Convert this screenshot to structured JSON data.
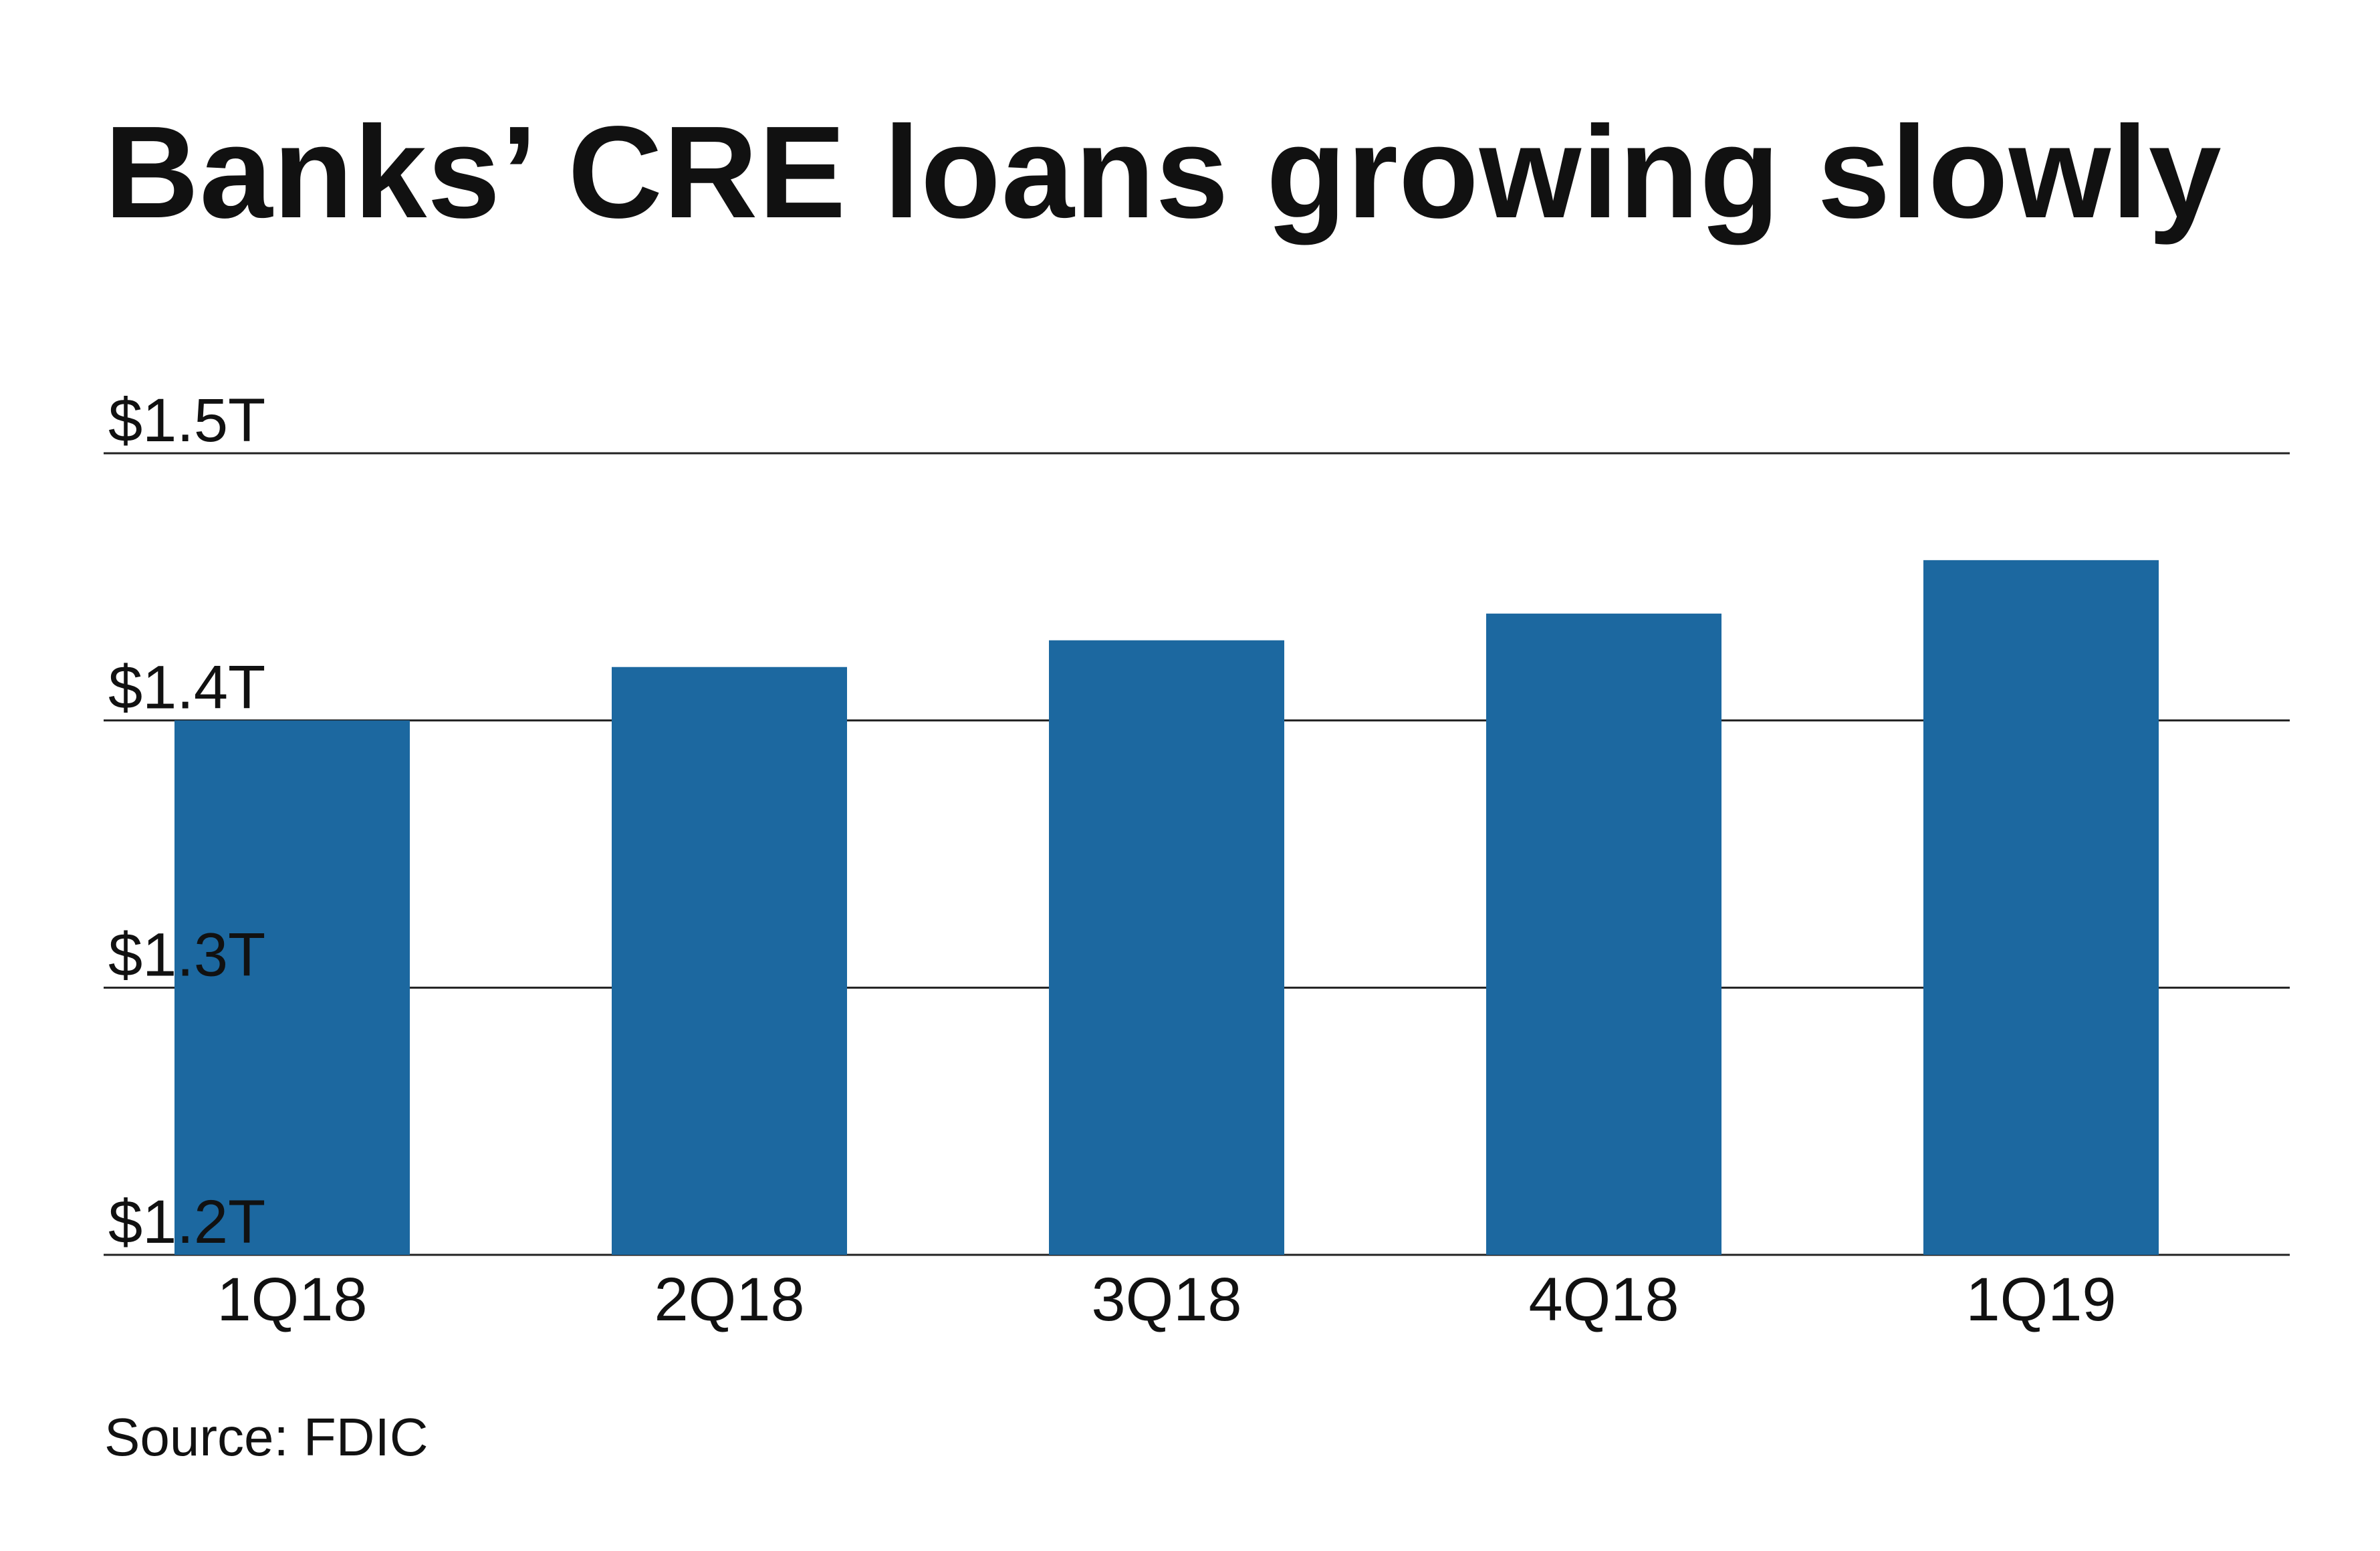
{
  "chart_data": {
    "type": "bar",
    "title": "Banks’ CRE loans growing slowly",
    "categories": [
      "1Q18",
      "2Q18",
      "3Q18",
      "4Q18",
      "1Q19"
    ],
    "values": [
      1.4,
      1.42,
      1.43,
      1.44,
      1.46
    ],
    "unit": "trillion USD",
    "ylim": [
      1.2,
      1.5
    ],
    "yticks": [
      1.2,
      1.3,
      1.4,
      1.5
    ],
    "ytick_labels": [
      "$1.2T",
      "$1.3T",
      "$1.4T",
      "$1.5T"
    ],
    "xlabel": "",
    "ylabel": "",
    "grid": true,
    "legend": "none",
    "bar_color": "#1c68a0",
    "gridline_color": "#222222",
    "source": "Source: FDIC"
  }
}
